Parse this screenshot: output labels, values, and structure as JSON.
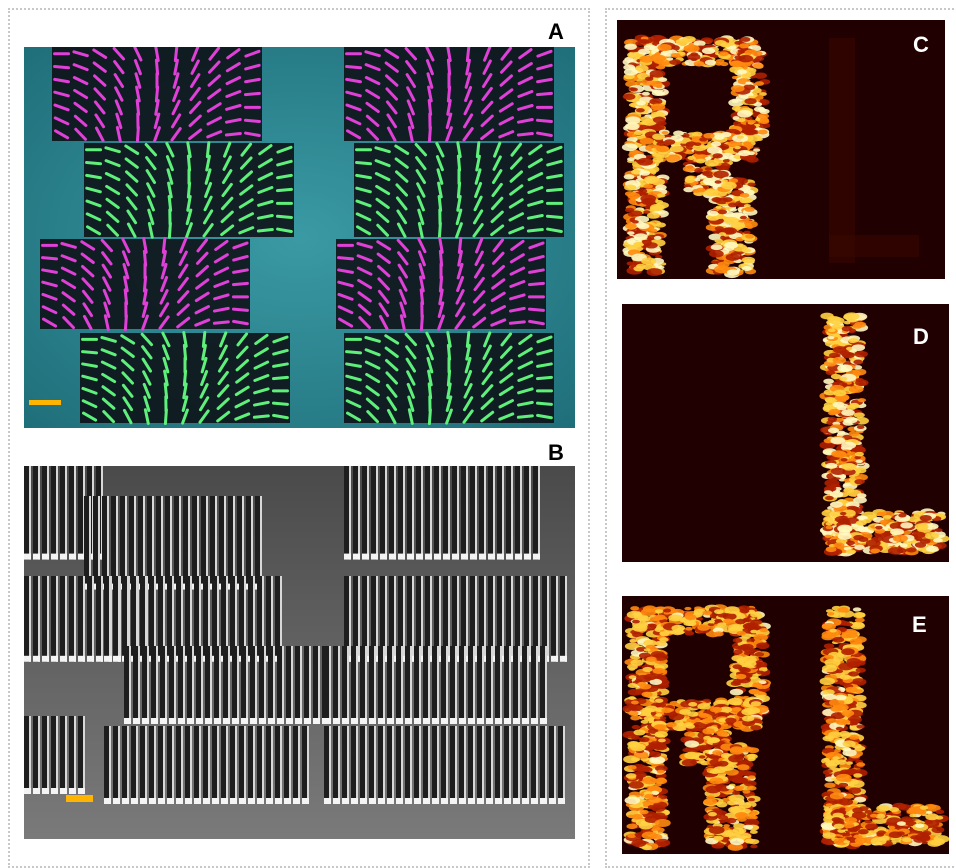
{
  "panels": {
    "a": {
      "label": "A"
    },
    "b": {
      "label": "B"
    },
    "c": {
      "label": "C"
    },
    "d": {
      "label": "D"
    },
    "e": {
      "label": "E"
    }
  },
  "colors": {
    "substrate_cyan": "#2f8a94",
    "rod_magenta": "#e040d8",
    "rod_green": "#5ef07a",
    "scale_bar": "#ffb400",
    "hologram_bg": "#200000",
    "hologram_bright": "#fff4a0"
  },
  "icons": {
    "scale_bar_a": "scale-bar",
    "scale_bar_b": "scale-bar"
  }
}
